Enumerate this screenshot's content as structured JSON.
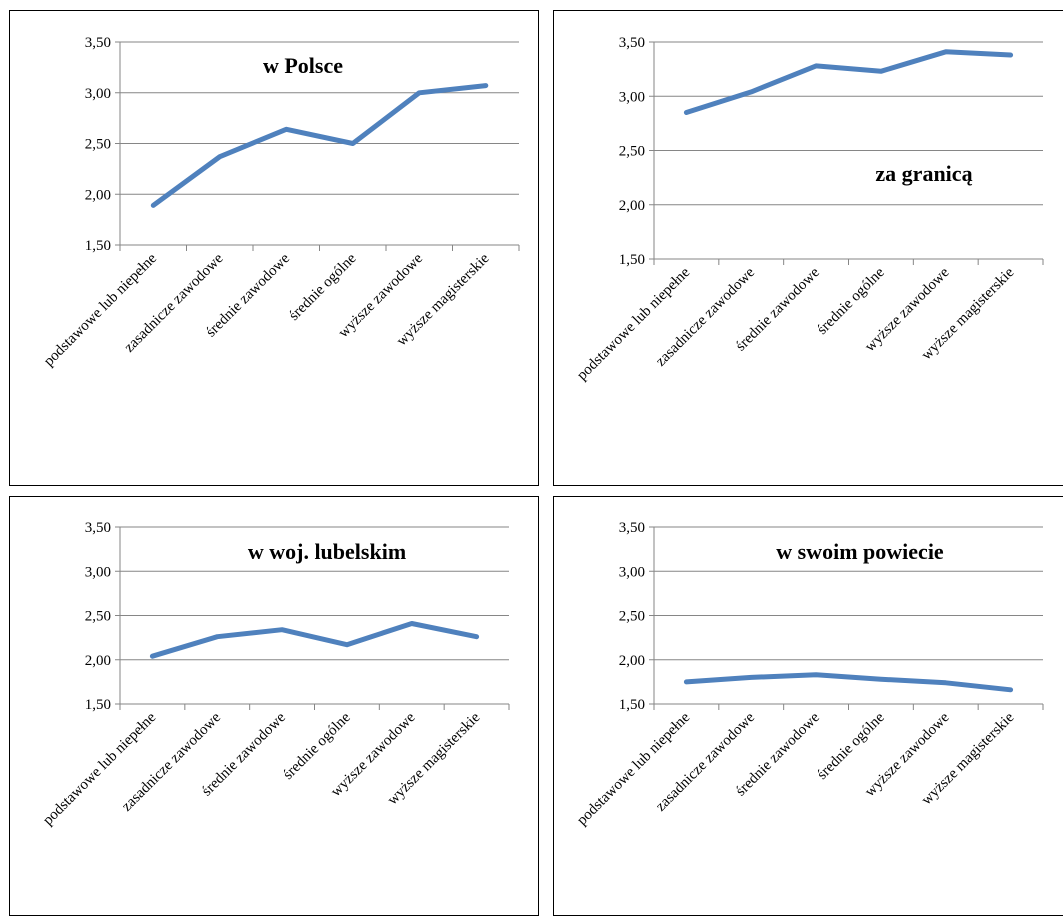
{
  "chart_data": [
    {
      "type": "line",
      "title": "w Polsce",
      "categories": [
        "podstawowe lub niepełne",
        "zasadnicze zawodowe",
        "średnie zawodowe",
        "średnie ogólne",
        "wyższe zawodowe",
        "wyższe magisterskie"
      ],
      "series": [
        {
          "values": [
            1.89,
            2.37,
            2.64,
            2.5,
            3.0,
            3.07
          ]
        }
      ],
      "ylim": [
        1.5,
        3.5
      ],
      "yticks": [
        "1,50",
        "2,00",
        "2,50",
        "3,00",
        "3,50"
      ],
      "grid": true,
      "color": "#4f81bd"
    },
    {
      "type": "line",
      "title": "za granicą",
      "categories": [
        "podstawowe lub niepełne",
        "zasadnicze zawodowe",
        "średnie zawodowe",
        "średnie ogólne",
        "wyższe zawodowe",
        "wyższe magisterskie"
      ],
      "series": [
        {
          "values": [
            2.85,
            3.04,
            3.28,
            3.23,
            3.41,
            3.38
          ]
        }
      ],
      "ylim": [
        1.5,
        3.5
      ],
      "yticks": [
        "1,50",
        "2,00",
        "2,50",
        "3,00",
        "3,50"
      ],
      "grid": true,
      "color": "#4f81bd"
    },
    {
      "type": "line",
      "title": "w woj. lubelskim",
      "categories": [
        "podstawowe lub niepełne",
        "zasadnicze zawodowe",
        "średnie zawodowe",
        "średnie ogólne",
        "wyższe zawodowe",
        "wyższe magisterskie"
      ],
      "series": [
        {
          "values": [
            2.04,
            2.26,
            2.34,
            2.17,
            2.41,
            2.26
          ]
        }
      ],
      "ylim": [
        1.5,
        3.5
      ],
      "yticks": [
        "1,50",
        "2,00",
        "2,50",
        "3,00",
        "3,50"
      ],
      "grid": true,
      "color": "#4f81bd"
    },
    {
      "type": "line",
      "title": "w swoim powiecie",
      "categories": [
        "podstawowe lub niepełne",
        "zasadnicze zawodowe",
        "średnie zawodowe",
        "średnie ogólne",
        "wyższe zawodowe",
        "wyższe magisterskie"
      ],
      "series": [
        {
          "values": [
            1.75,
            1.8,
            1.83,
            1.78,
            1.74,
            1.66
          ]
        }
      ],
      "ylim": [
        1.5,
        3.5
      ],
      "yticks": [
        "1,50",
        "2,00",
        "2,50",
        "3,00",
        "3,50"
      ],
      "grid": true,
      "color": "#4f81bd"
    }
  ]
}
